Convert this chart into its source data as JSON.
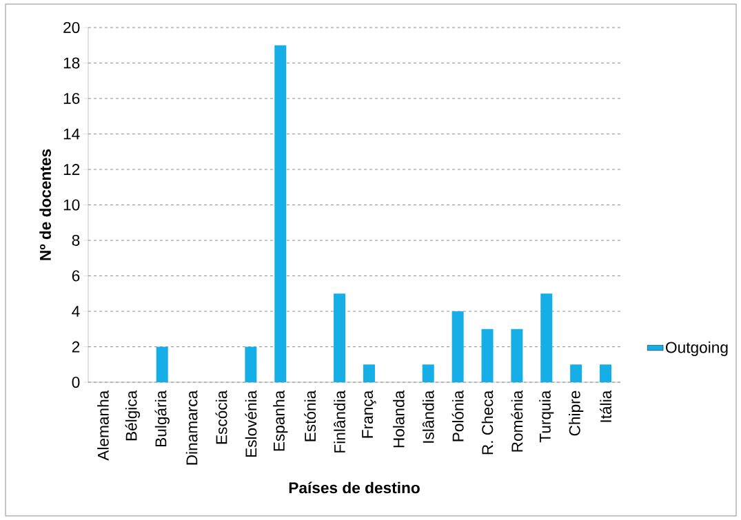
{
  "chart_data": {
    "type": "bar",
    "xlabel": "Países de destino",
    "ylabel": "Nº de docentes",
    "categories": [
      "Alemanha",
      "Bélgica",
      "Bulgária",
      "Dinamarca",
      "Escócia",
      "Eslovénia",
      "Espanha",
      "Estónia",
      "Finlândia",
      "França",
      "Holanda",
      "Islândia",
      "Polónia",
      "R. Checa",
      "Roménia",
      "Turquia",
      "Chipre",
      "Itália"
    ],
    "series": [
      {
        "name": "Outgoing",
        "color": "#15aee6",
        "values": [
          0,
          0,
          2,
          0,
          0,
          2,
          19,
          0,
          5,
          1,
          0,
          1,
          4,
          3,
          3,
          5,
          1,
          1
        ]
      }
    ],
    "ylim": [
      0,
      20
    ],
    "yticks": [
      0,
      2,
      4,
      6,
      8,
      10,
      12,
      14,
      16,
      18,
      20
    ],
    "grid": "y",
    "legend": "right"
  }
}
